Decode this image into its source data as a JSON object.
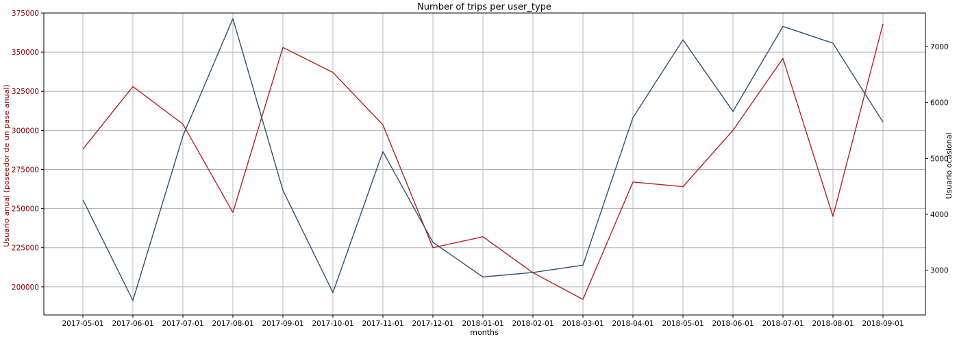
{
  "chart_data": {
    "type": "line",
    "title": "Number of trips per user_type",
    "xlabel": "months",
    "categories": [
      "2017-05-01",
      "2017-06-01",
      "2017-07-01",
      "2017-08-01",
      "2017-09-01",
      "2017-10-01",
      "2017-11-01",
      "2017-12-01",
      "2018-01-01",
      "2018-02-01",
      "2018-03-01",
      "2018-04-01",
      "2018-05-01",
      "2018-06-01",
      "2018-07-01",
      "2018-08-01",
      "2018-09-01"
    ],
    "left_axis": {
      "label": "Usuario anual (poseedor de un pase anual)",
      "ylim": [
        182000,
        375000
      ],
      "ticks": [
        200000,
        225000,
        250000,
        275000,
        300000,
        325000,
        350000,
        375000
      ],
      "color": "#8b0000"
    },
    "right_axis": {
      "label": "Usuario ocasional",
      "ylim": [
        2200,
        7600
      ],
      "ticks": [
        3000,
        4000,
        5000,
        6000,
        7000
      ],
      "color": "#000000"
    },
    "series": [
      {
        "axis": "left",
        "color": "#b22222",
        "values": [
          288000,
          328000,
          304000,
          247500,
          353000,
          337000,
          303500,
          225000,
          232000,
          209000,
          192000,
          267000,
          264000,
          300000,
          346000,
          245000,
          368000
        ]
      },
      {
        "axis": "right",
        "color": "#2f4f6f",
        "values": [
          4260,
          2460,
          5400,
          7500,
          4430,
          2600,
          5120,
          3500,
          2880,
          2960,
          3090,
          5730,
          7120,
          5840,
          7360,
          7060,
          5650
        ]
      }
    ],
    "grid": true
  }
}
